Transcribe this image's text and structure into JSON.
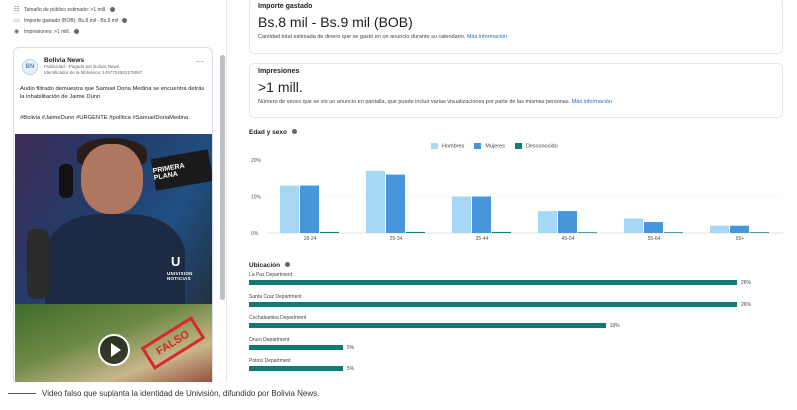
{
  "left_panel": {
    "stats": [
      {
        "icon": "audience-icon",
        "glyph": "☷",
        "label": "Tamaño de público estimado: >1 mill."
      },
      {
        "icon": "money-icon",
        "glyph": "▭",
        "label": "Importe gastado (BOB): Bs.8 mil - Bs.9 mil"
      },
      {
        "icon": "eye-icon",
        "glyph": "◉",
        "label": "Impresiones: >1 mill."
      }
    ],
    "ad": {
      "logo_text": "BN",
      "page_name": "Bolivia News",
      "sponsored": "Publicidad · Pagado por Bolivia News",
      "library_id": "Identificador de la biblioteca: 1497734553178067",
      "menu": "···",
      "text": "Audio filtrado demuestra que Samuel Doria Medina se encuentra detrás la inhabilitación de Jaime Dunn",
      "hashtags": "#Bolivia #JaimeDunn #URGENTE #política #SamuelDoriaMedina",
      "sign_text": "PRIMERA PLANA",
      "univision_logo": "U",
      "univision_text": "UNIVISION NOTICIAS",
      "stamp_text": "FALSO"
    }
  },
  "importe": {
    "title": "Importe gastado",
    "value": "Bs.8 mil - Bs.9 mil (BOB)",
    "desc": "Cantidad total estimada de dinero que se gastó en un anuncio durante su calendario.",
    "link": "Más información"
  },
  "impresiones": {
    "title": "Impresiones",
    "value": ">1 mill.",
    "desc": "Número de veces que se vio un anuncio en pantalla, que puede incluir varias visualizaciones por parte de las mismas personas.",
    "link": "Más información"
  },
  "edad_sexo": {
    "title": "Edad y sexo"
  },
  "chart_data": {
    "type": "bar",
    "title": "Edad y sexo",
    "categories": [
      "18-24",
      "25-34",
      "35-44",
      "45-54",
      "55-64",
      "65+"
    ],
    "series": [
      {
        "name": "Hombres",
        "color": "#a6d8f5",
        "values": [
          13,
          17,
          10,
          6,
          4,
          2
        ]
      },
      {
        "name": "Mujeres",
        "color": "#4596db",
        "values": [
          13,
          16,
          10,
          6,
          3,
          2
        ]
      },
      {
        "name": "Desconocido",
        "color": "#0f7b7d",
        "values": [
          0.3,
          0.3,
          0.3,
          0.2,
          0.2,
          0.2
        ]
      }
    ],
    "y_ticks": [
      "20%",
      "10%",
      "0%"
    ],
    "ylim": [
      0,
      20
    ],
    "legend": "top-center"
  },
  "ubicacion": {
    "title": "Ubicación",
    "bar_color": "#117a74",
    "items": [
      {
        "label": "La Paz Department",
        "value": 26,
        "value_label": "26%"
      },
      {
        "label": "Santa Cruz Department",
        "value": 26,
        "value_label": "26%"
      },
      {
        "label": "Cochabamba Department",
        "value": 19,
        "value_label": "19%"
      },
      {
        "label": "Oruro Department",
        "value": 5,
        "value_label": "5%"
      },
      {
        "label": "Potosí Department",
        "value": 5,
        "value_label": "5%"
      }
    ]
  },
  "caption": "Video falso que suplanta la identidad de Univisión, difundido por Bolivia News."
}
